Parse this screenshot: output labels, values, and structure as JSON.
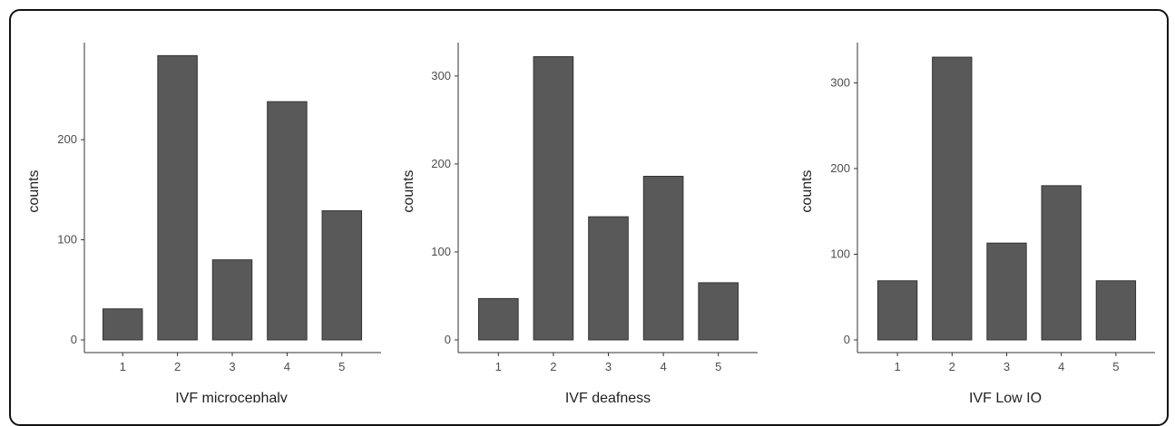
{
  "chart_data": [
    {
      "type": "bar",
      "categories": [
        "1",
        "2",
        "3",
        "4",
        "5"
      ],
      "values": [
        31,
        284,
        80,
        238,
        129
      ],
      "xlabel": "IVF microcephaly",
      "ylabel": "counts",
      "ylim": [
        0,
        297
      ],
      "yticks": [
        0,
        100,
        200
      ],
      "bar_color": "#595959",
      "grid": false
    },
    {
      "type": "bar",
      "categories": [
        "1",
        "2",
        "3",
        "4",
        "5"
      ],
      "values": [
        47,
        322,
        140,
        186,
        65
      ],
      "xlabel": "IVF deafness",
      "ylabel": "counts",
      "ylim": [
        0,
        338
      ],
      "yticks": [
        0,
        100,
        200,
        300
      ],
      "bar_color": "#595959",
      "grid": false
    },
    {
      "type": "bar",
      "categories": [
        "1",
        "2",
        "3",
        "4",
        "5"
      ],
      "values": [
        69,
        330,
        113,
        180,
        69
      ],
      "xlabel": "IVF Low IQ",
      "ylabel": "counts",
      "ylim": [
        0,
        347
      ],
      "yticks": [
        0,
        100,
        200,
        300
      ],
      "bar_color": "#595959",
      "grid": false
    }
  ]
}
